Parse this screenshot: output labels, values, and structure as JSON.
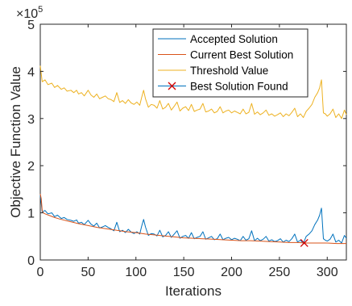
{
  "chart_data": {
    "type": "line",
    "xlabel": "Iterations",
    "ylabel": "Objective Function Value",
    "exponent_base": "×10",
    "exponent_power": "5",
    "xlim": [
      0,
      320
    ],
    "ylim": [
      0,
      5
    ],
    "x_ticks": [
      0,
      50,
      100,
      150,
      200,
      250,
      300
    ],
    "y_ticks": [
      0,
      1,
      2,
      3,
      4,
      5
    ],
    "grid": false,
    "legend_position": "top-right",
    "series": [
      {
        "name": "Accepted Solution",
        "color": "#0072BD",
        "x": [
          0,
          2,
          5,
          8,
          12,
          15,
          18,
          22,
          25,
          28,
          32,
          35,
          38,
          40,
          43,
          46,
          50,
          53,
          56,
          59,
          62,
          65,
          68,
          71,
          74,
          77,
          80,
          83,
          86,
          89,
          92,
          95,
          98,
          101,
          104,
          106,
          108,
          110,
          113,
          116,
          119,
          122,
          125,
          128,
          131,
          134,
          137,
          140,
          143,
          146,
          149,
          152,
          155,
          158,
          161,
          164,
          167,
          170,
          173,
          176,
          179,
          182,
          185,
          188,
          191,
          194,
          197,
          200,
          203,
          206,
          209,
          212,
          215,
          218,
          221,
          224,
          227,
          230,
          233,
          236,
          239,
          242,
          245,
          248,
          251,
          254,
          257,
          260,
          263,
          266,
          269,
          272,
          275,
          278,
          281,
          284,
          287,
          290,
          292,
          294,
          296,
          298,
          300,
          303,
          306,
          309,
          312,
          315,
          318,
          320
        ],
        "y": [
          1.38,
          1.02,
          1.05,
          0.98,
          1.0,
          0.92,
          0.95,
          0.88,
          0.9,
          0.86,
          0.84,
          0.82,
          0.85,
          0.78,
          0.8,
          0.75,
          0.84,
          0.76,
          0.72,
          0.78,
          0.68,
          0.7,
          0.73,
          0.69,
          0.66,
          0.62,
          0.8,
          0.6,
          0.63,
          0.58,
          0.65,
          0.59,
          0.56,
          0.6,
          0.55,
          0.72,
          0.86,
          0.7,
          0.52,
          0.56,
          0.55,
          0.51,
          0.63,
          0.49,
          0.52,
          0.6,
          0.48,
          0.55,
          0.62,
          0.46,
          0.5,
          0.52,
          0.46,
          0.58,
          0.45,
          0.48,
          0.5,
          0.6,
          0.44,
          0.47,
          0.5,
          0.43,
          0.45,
          0.55,
          0.43,
          0.46,
          0.48,
          0.43,
          0.46,
          0.44,
          0.41,
          0.5,
          0.42,
          0.45,
          0.62,
          0.41,
          0.46,
          0.41,
          0.44,
          0.5,
          0.4,
          0.43,
          0.39,
          0.41,
          0.45,
          0.38,
          0.42,
          0.39,
          0.45,
          0.55,
          0.38,
          0.42,
          0.35,
          0.5,
          0.55,
          0.62,
          0.75,
          0.85,
          0.95,
          1.1,
          0.45,
          0.42,
          0.4,
          0.44,
          0.55,
          0.38,
          0.42,
          0.36,
          0.52,
          0.46
        ]
      },
      {
        "name": "Current Best Solution",
        "color": "#D95319",
        "x": [
          0,
          1,
          2,
          3,
          5,
          10,
          15,
          20,
          30,
          40,
          50,
          60,
          70,
          80,
          90,
          100,
          110,
          120,
          130,
          140,
          150,
          160,
          170,
          180,
          190,
          200,
          210,
          220,
          230,
          240,
          250,
          260,
          270,
          276,
          280,
          290,
          300,
          310,
          320
        ],
        "y": [
          1.4,
          1.3,
          1.05,
          1.0,
          0.98,
          0.94,
          0.9,
          0.87,
          0.82,
          0.77,
          0.73,
          0.69,
          0.66,
          0.63,
          0.6,
          0.58,
          0.55,
          0.53,
          0.51,
          0.49,
          0.47,
          0.46,
          0.45,
          0.44,
          0.43,
          0.42,
          0.41,
          0.41,
          0.4,
          0.39,
          0.38,
          0.37,
          0.37,
          0.36,
          0.36,
          0.36,
          0.36,
          0.35,
          0.35
        ]
      },
      {
        "name": "Threshold Value",
        "color": "#EDB120",
        "x": [
          0,
          2,
          5,
          8,
          12,
          15,
          18,
          22,
          25,
          28,
          32,
          35,
          38,
          40,
          43,
          46,
          50,
          53,
          56,
          59,
          62,
          65,
          68,
          71,
          74,
          77,
          80,
          83,
          86,
          89,
          92,
          95,
          98,
          101,
          104,
          106,
          108,
          110,
          113,
          116,
          119,
          122,
          125,
          128,
          131,
          134,
          137,
          140,
          143,
          146,
          149,
          152,
          155,
          158,
          161,
          164,
          167,
          170,
          173,
          176,
          179,
          182,
          185,
          188,
          191,
          194,
          197,
          200,
          203,
          206,
          209,
          212,
          215,
          218,
          221,
          224,
          227,
          230,
          233,
          236,
          239,
          242,
          245,
          248,
          251,
          254,
          257,
          260,
          263,
          266,
          269,
          272,
          275,
          278,
          281,
          284,
          287,
          290,
          292,
          294,
          296,
          298,
          300,
          303,
          306,
          309,
          312,
          315,
          318,
          320
        ],
        "y": [
          4.12,
          3.78,
          3.82,
          3.72,
          3.75,
          3.66,
          3.7,
          3.62,
          3.65,
          3.58,
          3.6,
          3.55,
          3.6,
          3.52,
          3.55,
          3.48,
          3.6,
          3.5,
          3.45,
          3.52,
          3.42,
          3.45,
          3.48,
          3.42,
          3.4,
          3.36,
          3.55,
          3.34,
          3.38,
          3.32,
          3.4,
          3.33,
          3.3,
          3.35,
          3.28,
          3.45,
          3.6,
          3.42,
          3.24,
          3.3,
          3.28,
          3.22,
          3.38,
          3.2,
          3.24,
          3.32,
          3.18,
          3.26,
          3.35,
          3.16,
          3.22,
          3.25,
          3.17,
          3.3,
          3.15,
          3.18,
          3.2,
          3.32,
          3.14,
          3.16,
          3.2,
          3.12,
          3.15,
          3.25,
          3.12,
          3.16,
          3.18,
          3.12,
          3.16,
          3.13,
          3.1,
          3.2,
          3.1,
          3.13,
          3.32,
          3.09,
          3.14,
          3.08,
          3.12,
          3.18,
          3.07,
          3.1,
          3.05,
          3.08,
          3.12,
          3.04,
          3.1,
          3.06,
          3.13,
          3.22,
          3.04,
          3.1,
          3.02,
          3.15,
          3.22,
          3.3,
          3.45,
          3.55,
          3.65,
          3.82,
          3.12,
          3.1,
          3.05,
          3.1,
          3.2,
          3.02,
          3.1,
          3.0,
          3.18,
          3.08
        ]
      },
      {
        "name": "Best Solution Found",
        "color": "#D00000",
        "marker": "x",
        "x": [
          276
        ],
        "y": [
          0.36
        ]
      }
    ]
  }
}
